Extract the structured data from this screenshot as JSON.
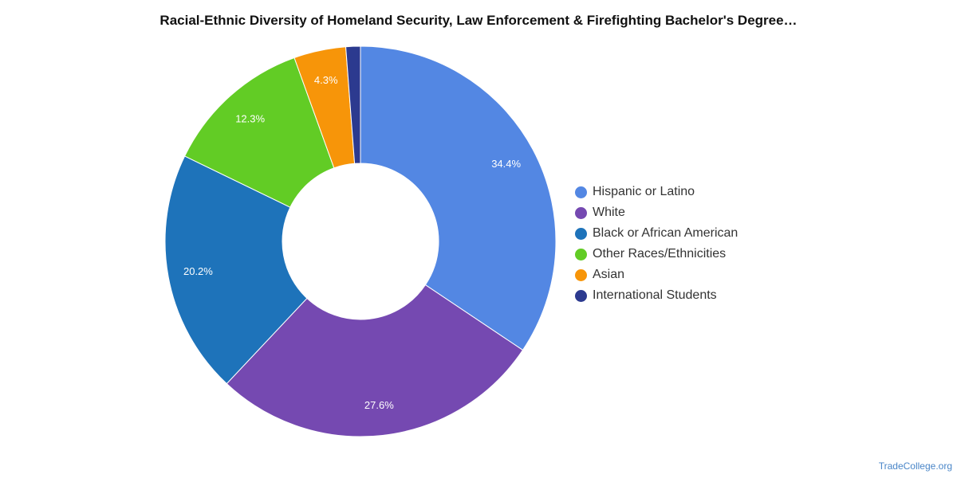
{
  "chart_data": {
    "type": "pie",
    "title": "Racial-Ethnic Diversity of Homeland Security, Law Enforcement & Firefighting Bachelor's Degree…",
    "donut": true,
    "legend_position": "right",
    "slices": [
      {
        "label": "Hispanic or Latino",
        "value": 34.4,
        "value_label": "34.4%",
        "color": "#5387e3"
      },
      {
        "label": "White",
        "value": 27.6,
        "value_label": "27.6%",
        "color": "#7549b1"
      },
      {
        "label": "Black or African American",
        "value": 20.2,
        "value_label": "20.2%",
        "color": "#1e73ba"
      },
      {
        "label": "Other Races/Ethnicities",
        "value": 12.3,
        "value_label": "12.3%",
        "color": "#62cc25"
      },
      {
        "label": "Asian",
        "value": 4.3,
        "value_label": "4.3%",
        "color": "#f79509"
      },
      {
        "label": "International Students",
        "value": 1.2,
        "value_label": "",
        "color": "#2c3a8f"
      }
    ]
  },
  "credit": "TradeCollege.org"
}
